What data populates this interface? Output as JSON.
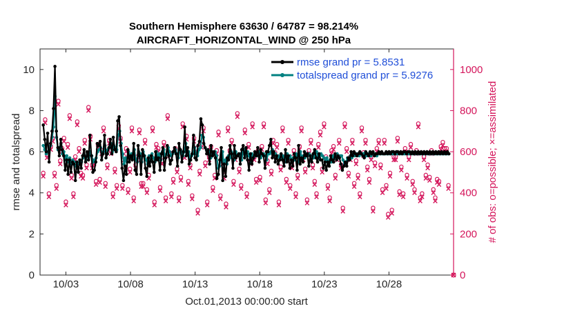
{
  "chart_data": {
    "type": "line",
    "title_line1": "Southern Hemisphere 63630 / 64787 = 98.214%",
    "title_line2": "AIRCRAFT_HORIZONTAL_WIND @ 250 hPa",
    "xlabel": "Oct.01,2013 00:00:00 start",
    "ylabel_left": "rmse and totalspread",
    "ylabel_right": "# of obs: o=possible; ×=assimilated",
    "x_days_range": [
      0.5,
      32.5
    ],
    "ylim_left": [
      0,
      11
    ],
    "ylim_right": [
      0,
      1100
    ],
    "x_ticks": [
      {
        "day": 2.5,
        "label": "10/03"
      },
      {
        "day": 7.5,
        "label": "10/08"
      },
      {
        "day": 12.5,
        "label": "10/13"
      },
      {
        "day": 17.5,
        "label": "10/18"
      },
      {
        "day": 22.5,
        "label": "10/23"
      },
      {
        "day": 27.5,
        "label": "10/28"
      }
    ],
    "y_ticks_left": [
      "0",
      "2",
      "4",
      "6",
      "8",
      "10"
    ],
    "y_ticks_right": [
      "0",
      "200",
      "400",
      "600",
      "800",
      "1000"
    ],
    "y_ticks_left_values": [
      0,
      2,
      4,
      6,
      8,
      10
    ],
    "y_ticks_right_values": [
      0,
      200,
      400,
      600,
      800,
      1000
    ],
    "colors": {
      "rmse": "#000000",
      "spread": "#008080",
      "obs": "#d4145a",
      "legend_text": "#1f4ed8"
    },
    "legend": {
      "placement": "top-right",
      "entries": [
        "rmse grand pr = 5.8531",
        "totalspread grand pr = 5.9276"
      ]
    },
    "series": [
      {
        "name": "rmse",
        "values": [
          7.3,
          6.6,
          6.0,
          6.9,
          5.5,
          6.4,
          7.0,
          8.1,
          10.15,
          7.0,
          6.2,
          5.8,
          6.6,
          6.1,
          5.8,
          5.1,
          5.6,
          4.9,
          5.6,
          5.0,
          5.5,
          5.4,
          4.6,
          5.5,
          5.0,
          5.6,
          5.2,
          5.8,
          6.1,
          5.5,
          6.0,
          5.6,
          6.8,
          5.8,
          5.0,
          5.1,
          5.5,
          6.4,
          6.3,
          6.5,
          5.6,
          5.9,
          6.8,
          5.7,
          5.9,
          6.2,
          6.6,
          5.9,
          6.7,
          6.1,
          6.0,
          7.5,
          7.7,
          6.3,
          5.2,
          4.6,
          5.3,
          4.9,
          6.1,
          5.5,
          5.8,
          5.6,
          6.4,
          5.1,
          4.9,
          6.3,
          5.8,
          4.9,
          6.1,
          5.8,
          5.2,
          4.8,
          5.7,
          5.3,
          5.8,
          5.5,
          5.0,
          6.0,
          5.6,
          5.7,
          5.1,
          5.9,
          6.2,
          5.1,
          5.7,
          6.3,
          5.8,
          5.4,
          5.6,
          6.0,
          6.2,
          5.9,
          5.3,
          6.4,
          6.1,
          5.5,
          6.0,
          7.2,
          5.8,
          6.2,
          5.4,
          5.6,
          5.9,
          6.8,
          5.7,
          5.6,
          6.3,
          6.5,
          7.6,
          7.3,
          6.4,
          6.2,
          5.9,
          6.1,
          5.4,
          6.3,
          5.8,
          6.0,
          5.7,
          4.7,
          4.9,
          5.6,
          6.2,
          4.6,
          5.4,
          4.8,
          5.7,
          5.6,
          6.3,
          5.9,
          5.2,
          6.3,
          5.7,
          5.8,
          5.9,
          5.4,
          6.1,
          6.3,
          5.7,
          6.2,
          5.6,
          5.1,
          5.9,
          5.4,
          5.7,
          6.0,
          5.8,
          6.2,
          5.5,
          6.1,
          5.9,
          5.8,
          5.2,
          6.0,
          6.0,
          6.3,
          6.6,
          5.7,
          6.0,
          5.5,
          5.8,
          5.4,
          5.6,
          5.9,
          5.6,
          5.3,
          6.1,
          5.5,
          5.8,
          5.2,
          5.6,
          5.3,
          5.9,
          5.7,
          5.1,
          6.3,
          5.4,
          5.7,
          5.5,
          6.0,
          5.8,
          5.9,
          5.3,
          5.8,
          5.5,
          5.9,
          6.1,
          5.7,
          5.5,
          5.9,
          5.6,
          5.6,
          5.2,
          5.5,
          5.1,
          5.5,
          5.3,
          5.8,
          5.6,
          5.5,
          5.9,
          5.6,
          5.8,
          5.7,
          5.4,
          5.1,
          5.3,
          5.5,
          5.3,
          5.7,
          5.6,
          6.0,
          5.8,
          6.0,
          5.9,
          5.8,
          5.9,
          6.0,
          5.9,
          5.8,
          5.7,
          6.0,
          5.9,
          5.8,
          6.0,
          5.9,
          6.0,
          5.8,
          5.9,
          5.9,
          6.0,
          5.9,
          6.0,
          5.9,
          5.9,
          6.0,
          5.9,
          6.0,
          5.9,
          6.0,
          6.0,
          5.9,
          6.0,
          6.0,
          5.9,
          6.0,
          5.9,
          6.0,
          6.0,
          5.9,
          6.0,
          6.0,
          5.9,
          6.0,
          5.9,
          6.0,
          5.9,
          6.0,
          5.9,
          6.0,
          5.9,
          6.0,
          5.9,
          6.0,
          5.9,
          6.0,
          5.9,
          6.0,
          5.9,
          6.0,
          5.9,
          6.0,
          5.9,
          6.0,
          5.9,
          6.0,
          5.9,
          6.0,
          5.9
        ]
      },
      {
        "name": "totalspread",
        "values": [
          6.3,
          6.1,
          5.9,
          6.0,
          6.1,
          6.3,
          6.7,
          7.2,
          8.7,
          6.7,
          6.1,
          6.2,
          6.4,
          5.9,
          6.0,
          5.6,
          5.8,
          5.5,
          5.7,
          5.4,
          5.6,
          5.5,
          5.3,
          5.5,
          5.4,
          5.6,
          5.5,
          5.7,
          5.8,
          5.6,
          5.9,
          5.7,
          6.0,
          5.8,
          5.5,
          5.6,
          5.7,
          6.0,
          6.1,
          6.2,
          5.9,
          6.0,
          6.3,
          5.9,
          6.1,
          6.2,
          6.4,
          6.0,
          6.3,
          6.2,
          6.1,
          6.8,
          7.0,
          6.4,
          5.9,
          5.4,
          5.7,
          5.5,
          6.0,
          5.8,
          5.9,
          5.7,
          6.1,
          5.6,
          5.5,
          6.0,
          5.9,
          5.5,
          6.0,
          5.8,
          5.6,
          5.4,
          5.8,
          5.6,
          5.9,
          5.7,
          5.5,
          6.0,
          5.8,
          5.9,
          5.6,
          6.0,
          6.1,
          5.7,
          5.9,
          6.2,
          6.0,
          5.8,
          5.9,
          6.0,
          6.1,
          5.9,
          5.7,
          6.1,
          6.0,
          5.8,
          6.0,
          6.4,
          5.9,
          6.0,
          5.7,
          5.8,
          5.9,
          6.2,
          5.9,
          5.8,
          6.1,
          6.2,
          6.8,
          6.7,
          6.2,
          6.1,
          5.9,
          6.0,
          5.7,
          6.0,
          5.9,
          6.0,
          5.8,
          5.2,
          5.3,
          5.7,
          6.0,
          5.2,
          5.6,
          5.4,
          5.8,
          5.7,
          6.0,
          5.9,
          5.6,
          6.0,
          5.8,
          5.8,
          5.9,
          5.6,
          6.0,
          6.1,
          5.8,
          6.0,
          5.8,
          5.5,
          5.9,
          5.7,
          5.8,
          5.9,
          5.8,
          6.0,
          5.7,
          5.9,
          5.9,
          5.8,
          5.6,
          5.9,
          5.9,
          6.0,
          6.1,
          5.8,
          5.9,
          5.7,
          5.8,
          5.6,
          5.7,
          5.8,
          5.7,
          5.5,
          5.9,
          5.7,
          5.8,
          5.5,
          5.7,
          5.6,
          5.9,
          5.8,
          5.5,
          6.0,
          5.7,
          5.8,
          5.7,
          5.9,
          5.8,
          5.9,
          5.6,
          5.8,
          5.7,
          5.9,
          6.0,
          5.8,
          5.7,
          5.9,
          5.8,
          5.7,
          5.5,
          5.7,
          5.4,
          5.6,
          5.5,
          5.8,
          5.7,
          5.7,
          5.9,
          5.7,
          5.8,
          5.8,
          5.6,
          5.4,
          5.5,
          5.7,
          5.6,
          5.8,
          5.7,
          5.9,
          5.8,
          5.9,
          5.9,
          5.8,
          5.9,
          5.9,
          5.9,
          5.8,
          5.8,
          5.9,
          5.9,
          5.8,
          5.9,
          5.9,
          5.9,
          5.8,
          5.9,
          5.9,
          5.9,
          5.9,
          5.9,
          5.9,
          5.9,
          5.9,
          5.9,
          5.9,
          5.9,
          5.9,
          5.9,
          5.9,
          5.9,
          5.9,
          5.9,
          5.9,
          5.9,
          5.9,
          5.9,
          5.9,
          5.9,
          5.9,
          5.9,
          5.9,
          5.9,
          5.9,
          5.9,
          5.9,
          5.9,
          5.9,
          5.9,
          5.9,
          5.9,
          5.9,
          5.9,
          5.9,
          5.9,
          5.9,
          5.9,
          5.9,
          5.9,
          5.9,
          5.9,
          5.9,
          5.9,
          5.9,
          5.9
        ]
      }
    ],
    "obs_counts": [
      480,
      740,
      570,
      380,
      610,
      650,
      480,
      420,
      830,
      540,
      600,
      650,
      340,
      620,
      760,
      470,
      380,
      560,
      730,
      600,
      480,
      470,
      640,
      520,
      800,
      660,
      520,
      540,
      440,
      620,
      450,
      590,
      700,
      430,
      520,
      640,
      590,
      380,
      500,
      420,
      710,
      650,
      420,
      560,
      600,
      400,
      500,
      700,
      360,
      520,
      560,
      690,
      430,
      430,
      640,
      400,
      470,
      560,
      700,
      340,
      620,
      600,
      410,
      540,
      630,
      360,
      760,
      580,
      380,
      450,
      600,
      500,
      360,
      460,
      720,
      570,
      660,
      440,
      520,
      370,
      650,
      600,
      300,
      490,
      620,
      700,
      530,
      340,
      560,
      610,
      410,
      470,
      590,
      680,
      370,
      540,
      470,
      330,
      700,
      590,
      640,
      440,
      560,
      770,
      500,
      420,
      590,
      690,
      380,
      620,
      540,
      720,
      560,
      450,
      590,
      460,
      610,
      720,
      350,
      540,
      400,
      490,
      640,
      580,
      620,
      340,
      510,
      700,
      560,
      450,
      640,
      420,
      520,
      590,
      380,
      470,
      610,
      700,
      560,
      500,
      350,
      590,
      640,
      520,
      440,
      380,
      620,
      680,
      500,
      720,
      560,
      420,
      360,
      590,
      610,
      470,
      560,
      640,
      520,
      310,
      720,
      600,
      480,
      560,
      640,
      430,
      540,
      470,
      380,
      700,
      580,
      640,
      510,
      450,
      560,
      310,
      530,
      600,
      640,
      520,
      400,
      640,
      420,
      280,
      480,
      300,
      560,
      560,
      650,
      390,
      510,
      380,
      600,
      470,
      560,
      620,
      440,
      400,
      590,
      720,
      360,
      380,
      560,
      470,
      520,
      460,
      590,
      400,
      360,
      450,
      440,
      610,
      630,
      600,
      600,
      420
    ]
  }
}
